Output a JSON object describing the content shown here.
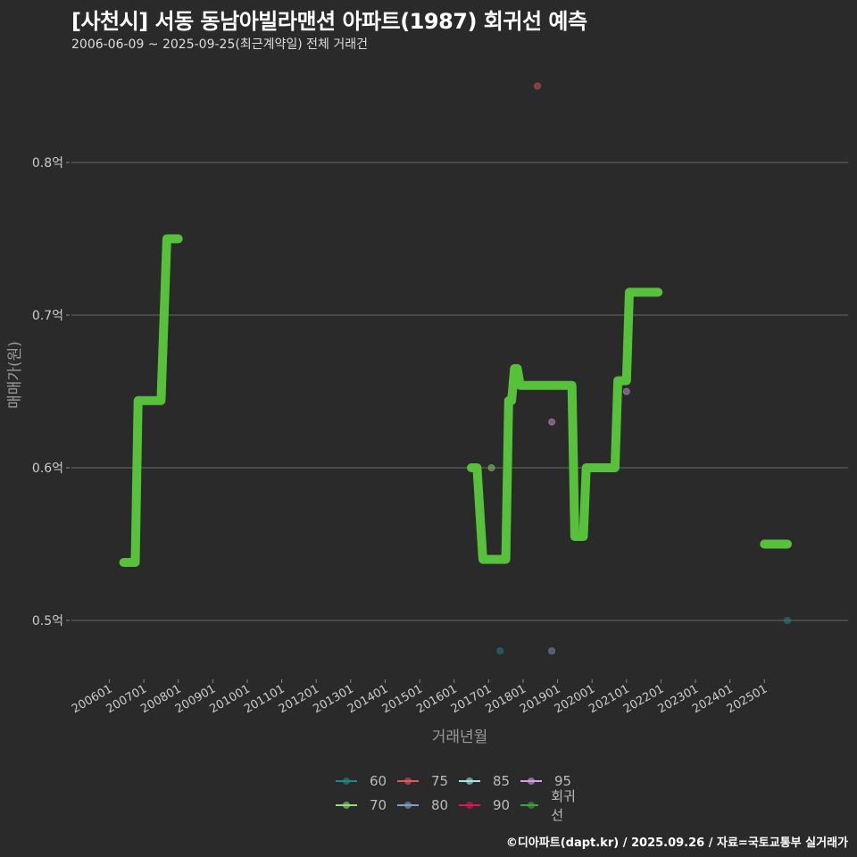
{
  "header": {
    "title": "[사천시] 서동 동남아빌라맨션 아파트(1987) 회귀선 예측",
    "subtitle": "2006-06-09 ~ 2025-09-25(최근계약일) 전체 거래건"
  },
  "footer": {
    "credit": "©디아파트(dapt.kr) / 2025.09.26 / 자료=국토교통부 실거래가"
  },
  "legend": {
    "items": [
      {
        "label": "60",
        "color": "#1f8a8a"
      },
      {
        "label": "75",
        "color": "#e05a5a"
      },
      {
        "label": "85",
        "color": "#a8e6e6"
      },
      {
        "label": "95",
        "color": "#d79ee6"
      },
      {
        "label": "70",
        "color": "#8ee070"
      },
      {
        "label": "80",
        "color": "#7f9fc8"
      },
      {
        "label": "90",
        "color": "#e8125a"
      },
      {
        "label": "회귀선",
        "color": "#3aa83a"
      }
    ]
  },
  "chart_data": {
    "type": "line",
    "title": "[사천시] 서동 동남아빌라맨션 아파트(1987) 회귀선 예측",
    "subtitle": "2006-06-09 ~ 2025-09-25(최근계약일) 전체 거래건",
    "xlabel": "거래년월",
    "ylabel": "매매가(원)",
    "ylim": [
      0.465,
      0.87
    ],
    "y_ticks": [
      "0.5억",
      "0.6억",
      "0.7억",
      "0.8억"
    ],
    "y_tick_values": [
      0.5,
      0.6,
      0.7,
      0.8
    ],
    "x_ticks": [
      "200601",
      "200701",
      "200801",
      "200901",
      "201001",
      "201101",
      "201201",
      "201301",
      "201401",
      "201501",
      "201601",
      "201701",
      "201801",
      "201901",
      "202001",
      "202101",
      "202201",
      "202301",
      "202401",
      "202501"
    ],
    "grid": "horizontal",
    "legend_position": "bottom",
    "series": [
      {
        "name": "회귀선",
        "color": "#57c13b",
        "points": [
          {
            "x": "2006-06",
            "y": 0.538
          },
          {
            "x": "2006-10",
            "y": 0.538
          },
          {
            "x": "2006-11",
            "y": 0.644
          },
          {
            "x": "2007-07",
            "y": 0.644
          },
          {
            "x": "2007-09",
            "y": 0.75
          },
          {
            "x": "2008-01",
            "y": 0.75
          },
          {
            "x": "break"
          },
          {
            "x": "2016-07",
            "y": 0.6
          },
          {
            "x": "2016-09",
            "y": 0.6
          },
          {
            "x": "2016-11",
            "y": 0.54
          },
          {
            "x": "2017-07",
            "y": 0.54
          },
          {
            "x": "2017-08",
            "y": 0.644
          },
          {
            "x": "2017-09",
            "y": 0.644
          },
          {
            "x": "2017-10",
            "y": 0.665
          },
          {
            "x": "2017-11",
            "y": 0.665
          },
          {
            "x": "2017-12",
            "y": 0.654
          },
          {
            "x": "2019-06",
            "y": 0.654
          },
          {
            "x": "2019-07",
            "y": 0.555
          },
          {
            "x": "2019-10",
            "y": 0.555
          },
          {
            "x": "2019-11",
            "y": 0.6
          },
          {
            "x": "2020-09",
            "y": 0.6
          },
          {
            "x": "2020-10",
            "y": 0.657
          },
          {
            "x": "2021-01",
            "y": 0.657
          },
          {
            "x": "2021-02",
            "y": 0.715
          },
          {
            "x": "2021-12",
            "y": 0.715
          },
          {
            "x": "break"
          },
          {
            "x": "2025-01",
            "y": 0.55
          },
          {
            "x": "2025-09",
            "y": 0.55
          }
        ]
      },
      {
        "name": "75",
        "type": "scatter",
        "color": "#e05a5a",
        "points": [
          {
            "x": "2018-06",
            "y": 0.85
          }
        ]
      },
      {
        "name": "70",
        "type": "scatter",
        "color": "#8ee070",
        "points": [
          {
            "x": "2017-02",
            "y": 0.6
          }
        ]
      },
      {
        "name": "60",
        "type": "scatter",
        "color": "#1f8a8a",
        "points": [
          {
            "x": "2017-05",
            "y": 0.48
          },
          {
            "x": "2025-09",
            "y": 0.5
          }
        ]
      },
      {
        "name": "80",
        "type": "scatter",
        "color": "#7f9fc8",
        "points": [
          {
            "x": "2018-11",
            "y": 0.48
          }
        ]
      },
      {
        "name": "95",
        "type": "scatter",
        "color": "#d79ee6",
        "points": [
          {
            "x": "2018-11",
            "y": 0.63
          },
          {
            "x": "2021-01",
            "y": 0.65
          }
        ]
      }
    ]
  }
}
